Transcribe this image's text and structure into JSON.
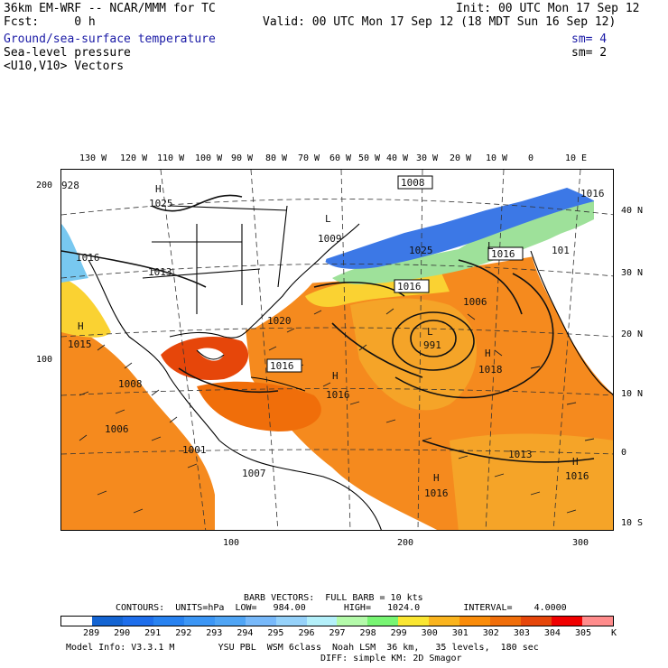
{
  "header": {
    "model": "36km EM-WRF -- NCAR/MMM for TC",
    "init": "Init: 00 UTC Mon 17 Sep 12",
    "fcst": "Fcst:     0 h",
    "valid": "Valid: 00 UTC Mon 17 Sep 12 (18 MDT Sun 16 Sep 12)",
    "field1": "Ground/sea-surface temperature",
    "field1_sm": "sm= 4",
    "field2": "Sea-level pressure",
    "field2_sm": "sm= 2",
    "field3": "<U10,V10> Vectors"
  },
  "top_axis": [
    "130 W",
    "120 W",
    "110 W",
    "100 W",
    "90 W",
    "80 W",
    "70 W",
    "60 W",
    "50 W",
    "40 W",
    "30 W",
    "20 W",
    "10 W",
    "0",
    "10 E"
  ],
  "right_axis": [
    "40 N",
    "30 N",
    "20 N",
    "10 N",
    "0",
    "10 S"
  ],
  "left_axis": [
    "200",
    "100"
  ],
  "bottom_axis": [
    "100",
    "200",
    "300"
  ],
  "pressure_labels": [
    {
      "text": "H",
      "v": "H"
    },
    {
      "text": "1025"
    },
    {
      "text": "1008"
    },
    {
      "text": "1016"
    },
    {
      "text": "1016"
    },
    {
      "text": "1013"
    },
    {
      "text": "1009"
    },
    {
      "text": "1025"
    },
    {
      "text": "1016"
    },
    {
      "text": "1006"
    },
    {
      "text": "1015"
    },
    {
      "text": "1016"
    },
    {
      "text": "991"
    },
    {
      "text": "1018"
    },
    {
      "text": "1008"
    },
    {
      "text": "1016"
    },
    {
      "text": "1006"
    },
    {
      "text": "1001"
    },
    {
      "text": "1007"
    },
    {
      "text": "1013"
    },
    {
      "text": "1016"
    },
    {
      "text": "1016"
    },
    {
      "text": "1020"
    },
    {
      "text": "101"
    },
    {
      "text": "1016"
    },
    {
      "text": "928"
    }
  ],
  "footer": {
    "barb": "BARB VECTORS:  FULL BARB = 10 kts",
    "contours": "CONTOURS:  UNITS=hPa  LOW=   984.00       HIGH=   1024.0        INTERVAL=    4.0000",
    "colorbar_labels": [
      "289",
      "290",
      "291",
      "292",
      "293",
      "294",
      "295",
      "296",
      "297",
      "298",
      "299",
      "300",
      "301",
      "302",
      "303",
      "304",
      "305"
    ],
    "colorbar_unit": "K",
    "model_info_1": "Model Info: V3.3.1 M        YSU PBL  WSM 6class  Noah LSM  36 km,   35 levels,  180 sec",
    "model_info_2": "DIFF: simple KM: 2D Smagor"
  },
  "colors": {
    "scale": [
      "#ffffff",
      "#1464d2",
      "#1e6eeb",
      "#2882f0",
      "#3c96f5",
      "#50a5f5",
      "#78b9fa",
      "#96d2fa",
      "#b4f0fa",
      "#b4faaa",
      "#78f573",
      "#fae632",
      "#fab41e",
      "#fa8c0a",
      "#f06e0a",
      "#e6460a",
      "#f00000",
      "#ff8c8c"
    ],
    "warm": "#f5a020",
    "cool": "#3c78e6",
    "land": "#ffffff"
  }
}
